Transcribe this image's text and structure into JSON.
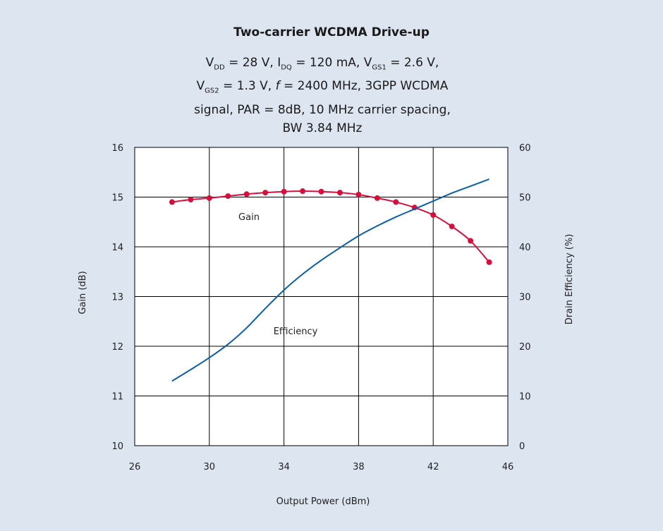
{
  "chart_data": {
    "type": "line",
    "title": "Two-carrier WCDMA Drive-up",
    "subtitle": {
      "line1": {
        "v": "V",
        "dd": "DD",
        "t1": " = 28 V, I",
        "dq": "DQ",
        "t2": " = 120 mA, V",
        "gs1": "GS1",
        "t3": " = 2.6 V,"
      },
      "line2": {
        "v": "V",
        "gs2": "GS2",
        "t1": " = 1.3 V, ",
        "f": "f",
        "t2": " = 2400 MHz, 3GPP WCDMA"
      },
      "line3": "signal, PAR = 8dB, 10 MHz carrier spacing,",
      "line4": "BW 3.84 MHz"
    },
    "xlabel": "Output Power (dBm)",
    "ylabel_left": "Gain (dB)",
    "ylabel_right": "Drain Efficiency (%)",
    "xlim": [
      26,
      46
    ],
    "ylim_left": [
      10,
      16
    ],
    "ylim_right": [
      0,
      60
    ],
    "x_ticks": [
      26,
      30,
      34,
      38,
      42,
      46
    ],
    "y_ticks_left": [
      10,
      11,
      12,
      13,
      14,
      15,
      16
    ],
    "y_ticks_right": [
      0,
      10,
      20,
      30,
      40,
      50,
      60
    ],
    "grid": true,
    "series": [
      {
        "name": "Gain",
        "axis": "left",
        "color": "#d6103e",
        "markers": true,
        "x": [
          28,
          29,
          30,
          31,
          32,
          33,
          34,
          35,
          36,
          37,
          38,
          39,
          40,
          41,
          42,
          43,
          44,
          45
        ],
        "y": [
          14.9,
          14.95,
          14.98,
          15.02,
          15.06,
          15.09,
          15.11,
          15.12,
          15.11,
          15.09,
          15.05,
          14.98,
          14.9,
          14.79,
          14.64,
          14.41,
          14.12,
          13.69
        ]
      },
      {
        "name": "Efficiency",
        "axis": "right",
        "color": "#0a5ea8",
        "markers": false,
        "x": [
          28,
          29,
          30,
          31,
          32,
          33,
          34,
          35,
          36,
          37,
          38,
          39,
          40,
          41,
          42,
          43,
          44,
          45
        ],
        "y": [
          13,
          15.3,
          17.7,
          20.4,
          23.7,
          27.6,
          31.3,
          34.5,
          37.3,
          39.8,
          42.2,
          44.2,
          46,
          47.6,
          49.2,
          50.8,
          52.2,
          53.6
        ]
      }
    ]
  }
}
